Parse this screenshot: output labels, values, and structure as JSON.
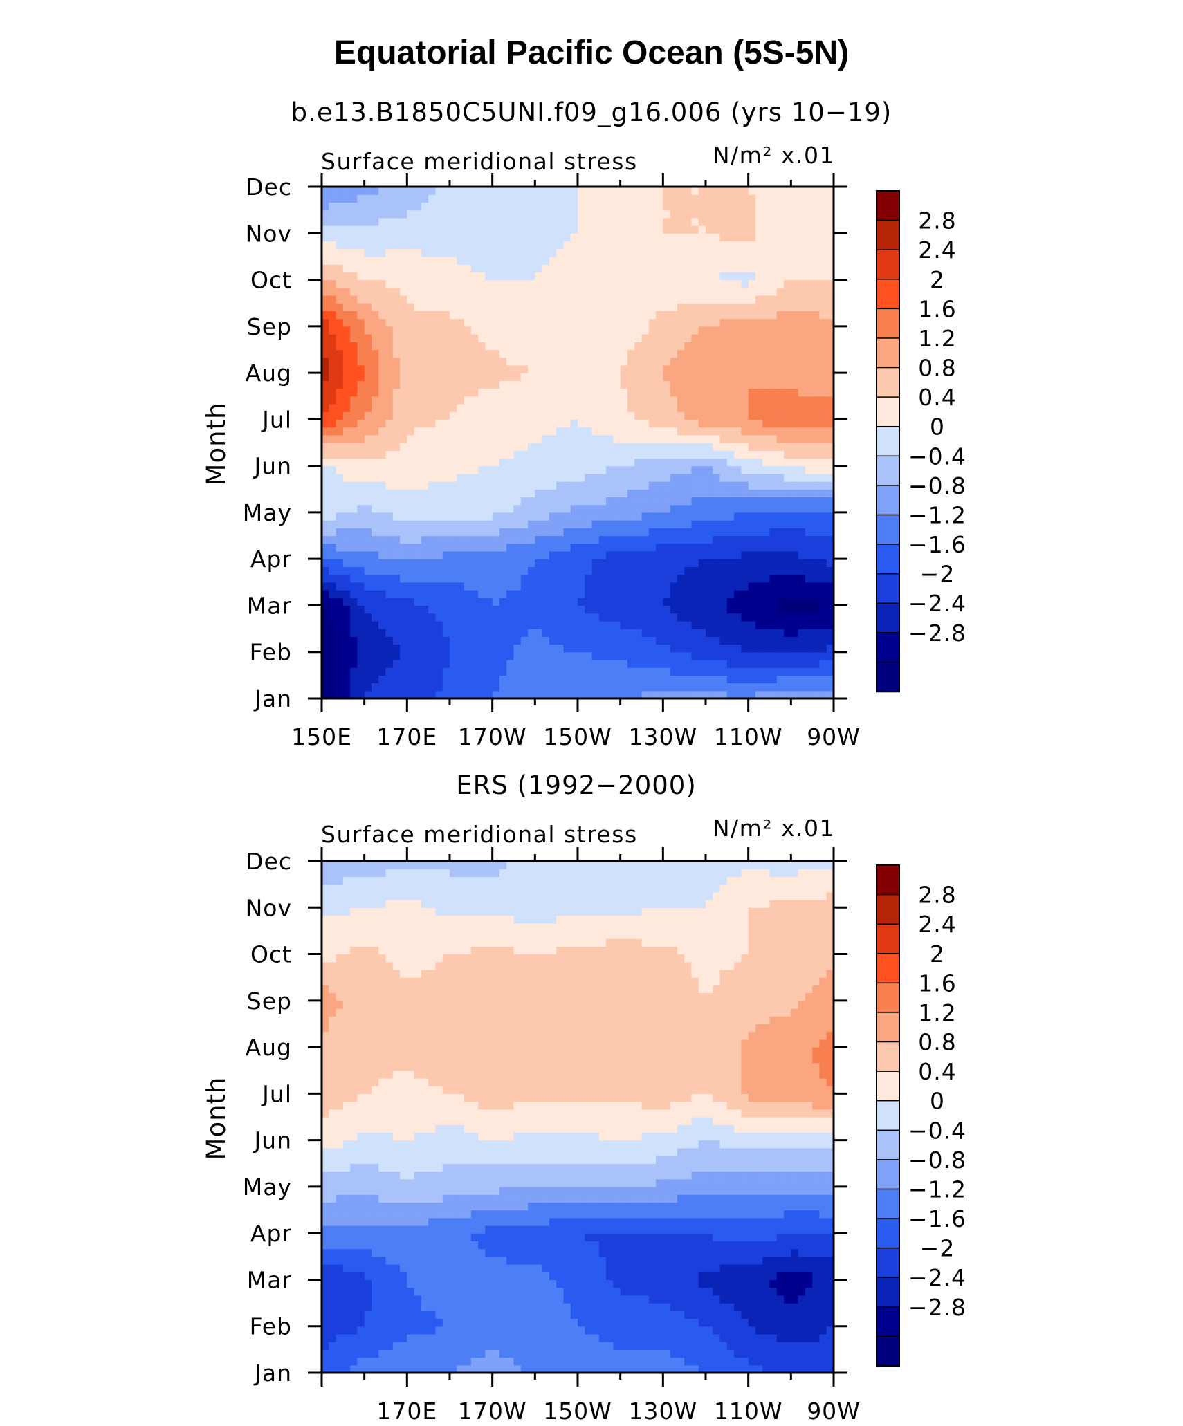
{
  "title": "Equatorial Pacific Ocean (5S-5N)",
  "colors": {
    "levels": [
      "#00007f",
      "#00008f",
      "#0a24b8",
      "#1a3fdc",
      "#2a5bf0",
      "#4d7ef5",
      "#7fa1f7",
      "#aac2fa",
      "#d0e1fb",
      "#ffe9dc",
      "#fcc8ae",
      "#f9a681",
      "#f77f50",
      "#ff5020",
      "#e03a12",
      "#b52405",
      "#820003"
    ]
  },
  "chart_data": [
    {
      "type": "heatmap",
      "subtitle": "b.e13.B1850C5UNI.f09_g16.006 (yrs 10−19)",
      "left_string": "Surface meridional stress",
      "right_string": "N/m² x.01",
      "ylabel": "Month",
      "xlabel": "",
      "x_tick_labels": [
        "150E",
        "170E",
        "170W",
        "150W",
        "130W",
        "110W",
        "90W"
      ],
      "y_tick_labels": [
        "Jan",
        "Feb",
        "Mar",
        "Apr",
        "May",
        "Jun",
        "Jul",
        "Aug",
        "Sep",
        "Oct",
        "Nov",
        "Dec"
      ],
      "xlim_deg_east": [
        150,
        270
      ],
      "ylim_month": [
        1,
        12
      ],
      "colorbar_levels": [
        -3.2,
        -2.8,
        -2.4,
        -2.0,
        -1.6,
        -1.2,
        -0.8,
        -0.4,
        0,
        0.4,
        0.8,
        1.2,
        1.6,
        2.0,
        2.4,
        2.8,
        3.2
      ],
      "colorbar_labels": [
        "2.8",
        "2.4",
        "2",
        "1.6",
        "1.2",
        "0.8",
        "0.4",
        "0",
        "−0.4",
        "−0.8",
        "−1.2",
        "−1.6",
        "−2",
        "−2.4",
        "−2.8"
      ],
      "grid_lon": [
        150,
        160,
        170,
        180,
        190,
        200,
        210,
        220,
        230,
        240,
        250,
        260,
        270
      ],
      "grid_month": [
        1,
        2,
        3,
        4,
        5,
        6,
        7,
        8,
        9,
        10,
        11,
        12
      ],
      "values": [
        [
          -3.1,
          -2.0,
          -1.8,
          -1.5,
          -1.2,
          -1.0,
          -0.9,
          -0.8,
          -0.7,
          -0.7,
          -0.7,
          -0.6,
          -0.6
        ],
        [
          -3.2,
          -2.2,
          -2.0,
          -1.6,
          -1.3,
          -1.1,
          -1.2,
          -1.3,
          -1.5,
          -1.8,
          -2.0,
          -2.0,
          -1.9
        ],
        [
          -3.0,
          -2.0,
          -1.7,
          -1.5,
          -1.2,
          -1.3,
          -1.6,
          -1.8,
          -2.0,
          -2.3,
          -2.6,
          -3.0,
          -2.8
        ],
        [
          -1.2,
          -0.9,
          -0.8,
          -0.9,
          -1.0,
          -1.2,
          -1.5,
          -1.8,
          -1.9,
          -2.0,
          -2.1,
          -2.1,
          -1.9
        ],
        [
          0.2,
          -0.1,
          0.2,
          0.2,
          0.1,
          -0.2,
          -0.5,
          -0.6,
          -0.8,
          -1.0,
          -1.2,
          -1.3,
          -1.3
        ],
        [
          0.3,
          0.7,
          0.6,
          0.5,
          0.4,
          0.3,
          0.2,
          0.0,
          -0.2,
          -0.4,
          0.2,
          0.5,
          0.7
        ],
        [
          2.4,
          1.6,
          0.9,
          0.8,
          0.6,
          0.5,
          0.4,
          0.7,
          1.0,
          1.4,
          1.6,
          1.9,
          1.8
        ],
        [
          3.0,
          2.0,
          1.0,
          0.9,
          0.9,
          0.8,
          0.8,
          0.8,
          1.2,
          1.5,
          1.6,
          1.4,
          1.3
        ],
        [
          2.6,
          1.6,
          0.9,
          0.9,
          0.7,
          0.5,
          0.4,
          0.6,
          0.9,
          1.2,
          1.4,
          1.4,
          1.3
        ],
        [
          1.2,
          0.8,
          0.7,
          0.5,
          0.4,
          0.4,
          0.5,
          0.5,
          0.6,
          0.4,
          0.3,
          0.8,
          0.8
        ],
        [
          0.2,
          0.1,
          0.2,
          0.3,
          0.2,
          0.3,
          0.4,
          0.5,
          0.8,
          0.8,
          0.9,
          0.4,
          0.5
        ],
        [
          -0.9,
          -0.5,
          -0.3,
          0.1,
          0.2,
          0.3,
          0.4,
          0.4,
          0.8,
          0.8,
          0.8,
          0.6,
          0.5
        ]
      ]
    },
    {
      "type": "heatmap",
      "subtitle": "ERS (1992−2000)",
      "left_string": "Surface meridional stress",
      "right_string": "N/m² x.01",
      "ylabel": "Month",
      "xlabel": "",
      "x_tick_labels": [
        "170E",
        "170W",
        "150W",
        "130W",
        "110W",
        "90W"
      ],
      "y_tick_labels": [
        "Jan",
        "Feb",
        "Mar",
        "Apr",
        "May",
        "Jun",
        "Jul",
        "Aug",
        "Sep",
        "Oct",
        "Nov",
        "Dec"
      ],
      "xlim_deg_east": [
        150,
        270
      ],
      "ylim_month": [
        1,
        12
      ],
      "colorbar_levels": [
        -3.2,
        -2.8,
        -2.4,
        -2.0,
        -1.6,
        -1.2,
        -0.8,
        -0.4,
        0,
        0.4,
        0.8,
        1.2,
        1.6,
        2.0,
        2.4,
        2.8,
        3.2
      ],
      "colorbar_labels": [
        "2.8",
        "2.4",
        "2",
        "1.6",
        "1.2",
        "0.8",
        "0.4",
        "0",
        "−0.4",
        "−0.8",
        "−1.2",
        "−1.6",
        "−2",
        "−2.4",
        "−2.8"
      ],
      "grid_lon": [
        150,
        160,
        170,
        180,
        190,
        200,
        210,
        220,
        230,
        240,
        250,
        260,
        270
      ],
      "grid_month": [
        1,
        2,
        3,
        4,
        5,
        6,
        7,
        8,
        9,
        10,
        11,
        12
      ],
      "values": [
        [
          -1.4,
          -1.0,
          -0.9,
          -0.8,
          -0.6,
          -0.9,
          -1.0,
          -1.1,
          -1.0,
          -1.2,
          -1.5,
          -1.7,
          -1.8
        ],
        [
          -1.8,
          -1.6,
          -1.3,
          -1.2,
          -1.0,
          -1.0,
          -1.2,
          -1.3,
          -1.4,
          -1.6,
          -2.0,
          -2.2,
          -2.0
        ],
        [
          -2.0,
          -1.7,
          -1.2,
          -1.0,
          -1.1,
          -1.1,
          -1.3,
          -1.7,
          -1.8,
          -2.1,
          -2.3,
          -2.6,
          -2.3
        ],
        [
          -0.9,
          -0.9,
          -0.9,
          -1.1,
          -1.3,
          -1.4,
          -1.6,
          -1.7,
          -1.6,
          -1.6,
          -1.4,
          -1.6,
          -1.6
        ],
        [
          -0.2,
          -0.3,
          -0.1,
          -0.2,
          -0.3,
          -0.4,
          -0.4,
          -0.3,
          -0.5,
          -0.6,
          -0.6,
          -0.7,
          -0.6
        ],
        [
          0.6,
          0.3,
          0.4,
          0.2,
          0.4,
          0.3,
          0.3,
          0.4,
          0.3,
          0.0,
          0.2,
          0.2,
          0.1
        ],
        [
          1.0,
          0.8,
          0.7,
          0.8,
          1.0,
          0.9,
          0.9,
          0.9,
          1.0,
          0.8,
          1.3,
          1.5,
          1.6
        ],
        [
          1.1,
          0.9,
          0.9,
          1.0,
          1.1,
          1.0,
          1.1,
          1.1,
          1.1,
          0.9,
          1.3,
          1.5,
          1.7
        ],
        [
          1.4,
          1.0,
          0.9,
          0.9,
          1.0,
          1.0,
          1.0,
          1.0,
          1.0,
          0.8,
          1.0,
          1.1,
          1.4
        ],
        [
          0.7,
          0.9,
          0.7,
          0.8,
          0.9,
          0.8,
          0.9,
          1.0,
          0.9,
          0.7,
          0.8,
          0.9,
          1.1
        ],
        [
          0.3,
          0.4,
          0.5,
          0.3,
          0.3,
          0.2,
          0.3,
          0.3,
          0.4,
          0.4,
          0.8,
          0.9,
          1.0
        ],
        [
          -0.3,
          -0.2,
          -0.1,
          -0.1,
          -0.2,
          0.3,
          0.2,
          0.3,
          0.3,
          0.2,
          0.3,
          0.2,
          0.3
        ]
      ]
    }
  ]
}
